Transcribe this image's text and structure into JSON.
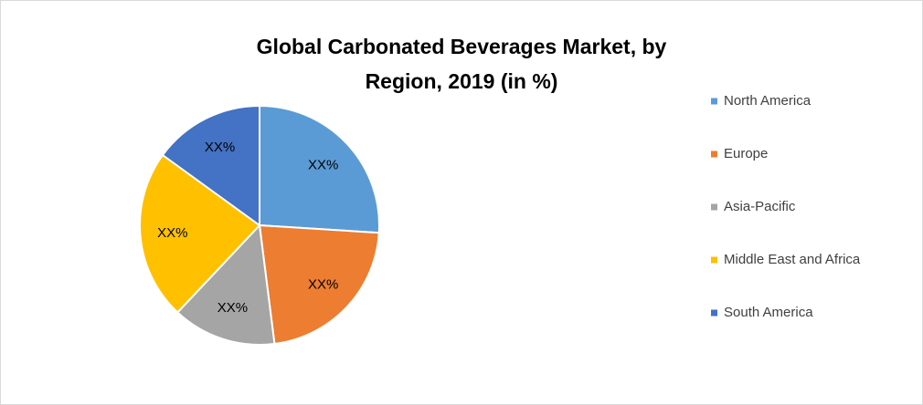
{
  "chart_data": {
    "type": "pie",
    "title": "Global Carbonated Beverages Market, by Region, 2019 (in %)",
    "categories": [
      "North America",
      "Europe",
      "Asia-Pacific",
      "Middle East and Africa",
      "South America"
    ],
    "values": [
      26,
      22,
      14,
      23,
      15
    ],
    "value_labels": [
      "XX%",
      "XX%",
      "XX%",
      "XX%",
      "XX%"
    ],
    "colors": [
      "#5b9bd5",
      "#ed7d31",
      "#a5a5a5",
      "#ffc000",
      "#4472c4"
    ],
    "legend": "right"
  }
}
